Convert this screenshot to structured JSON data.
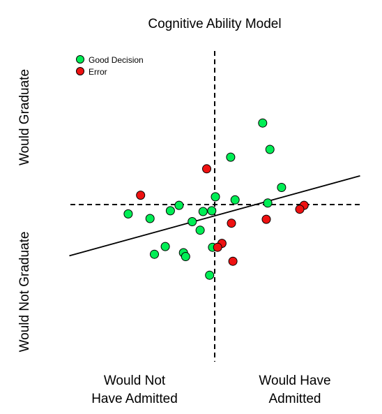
{
  "chart_data": {
    "type": "scatter",
    "title": "Cognitive Ability Model",
    "xlabel": "",
    "ylabel": "",
    "xlim": [
      -2,
      2
    ],
    "ylim": [
      -2,
      2
    ],
    "grid": false,
    "legend_position": "top-left",
    "threshold_x": 0,
    "threshold_y": 0,
    "fit_line": {
      "x": [
        -2,
        2
      ],
      "y": [
        -0.66,
        0.37
      ]
    },
    "quadrant_labels": {
      "y_top": "Would Graduate",
      "y_bottom": "Would Not Graduate",
      "x_left_line1": "Would Not",
      "x_left_line2": "Have Admitted",
      "x_right_line1": "Would Have",
      "x_right_line2": "Admitted"
    },
    "series": [
      {
        "name": "Good Decision",
        "color": "#00ee55",
        "points": [
          {
            "x": 0.66,
            "y": 1.05
          },
          {
            "x": 0.76,
            "y": 0.71
          },
          {
            "x": 0.22,
            "y": 0.61
          },
          {
            "x": 0.92,
            "y": 0.22
          },
          {
            "x": 0.01,
            "y": 0.1
          },
          {
            "x": 0.28,
            "y": 0.06
          },
          {
            "x": 0.73,
            "y": 0.02
          },
          {
            "x": -0.49,
            "y": -0.01
          },
          {
            "x": -0.61,
            "y": -0.08
          },
          {
            "x": -0.16,
            "y": -0.09
          },
          {
            "x": -0.04,
            "y": -0.08
          },
          {
            "x": -1.19,
            "y": -0.12
          },
          {
            "x": -0.89,
            "y": -0.18
          },
          {
            "x": -0.31,
            "y": -0.22
          },
          {
            "x": -0.2,
            "y": -0.33
          },
          {
            "x": -0.68,
            "y": -0.54
          },
          {
            "x": -0.03,
            "y": -0.55
          },
          {
            "x": -0.83,
            "y": -0.64
          },
          {
            "x": -0.43,
            "y": -0.62
          },
          {
            "x": -0.4,
            "y": -0.67
          },
          {
            "x": -0.07,
            "y": -0.91
          }
        ]
      },
      {
        "name": "Error",
        "color": "#ee1111",
        "points": [
          {
            "x": -0.11,
            "y": 0.46
          },
          {
            "x": -1.02,
            "y": 0.12
          },
          {
            "x": 1.23,
            "y": -0.01
          },
          {
            "x": 1.17,
            "y": -0.06
          },
          {
            "x": 0.71,
            "y": -0.19
          },
          {
            "x": 0.23,
            "y": -0.24
          },
          {
            "x": 0.1,
            "y": -0.5
          },
          {
            "x": 0.04,
            "y": -0.55
          },
          {
            "x": 0.25,
            "y": -0.73
          }
        ]
      }
    ]
  }
}
